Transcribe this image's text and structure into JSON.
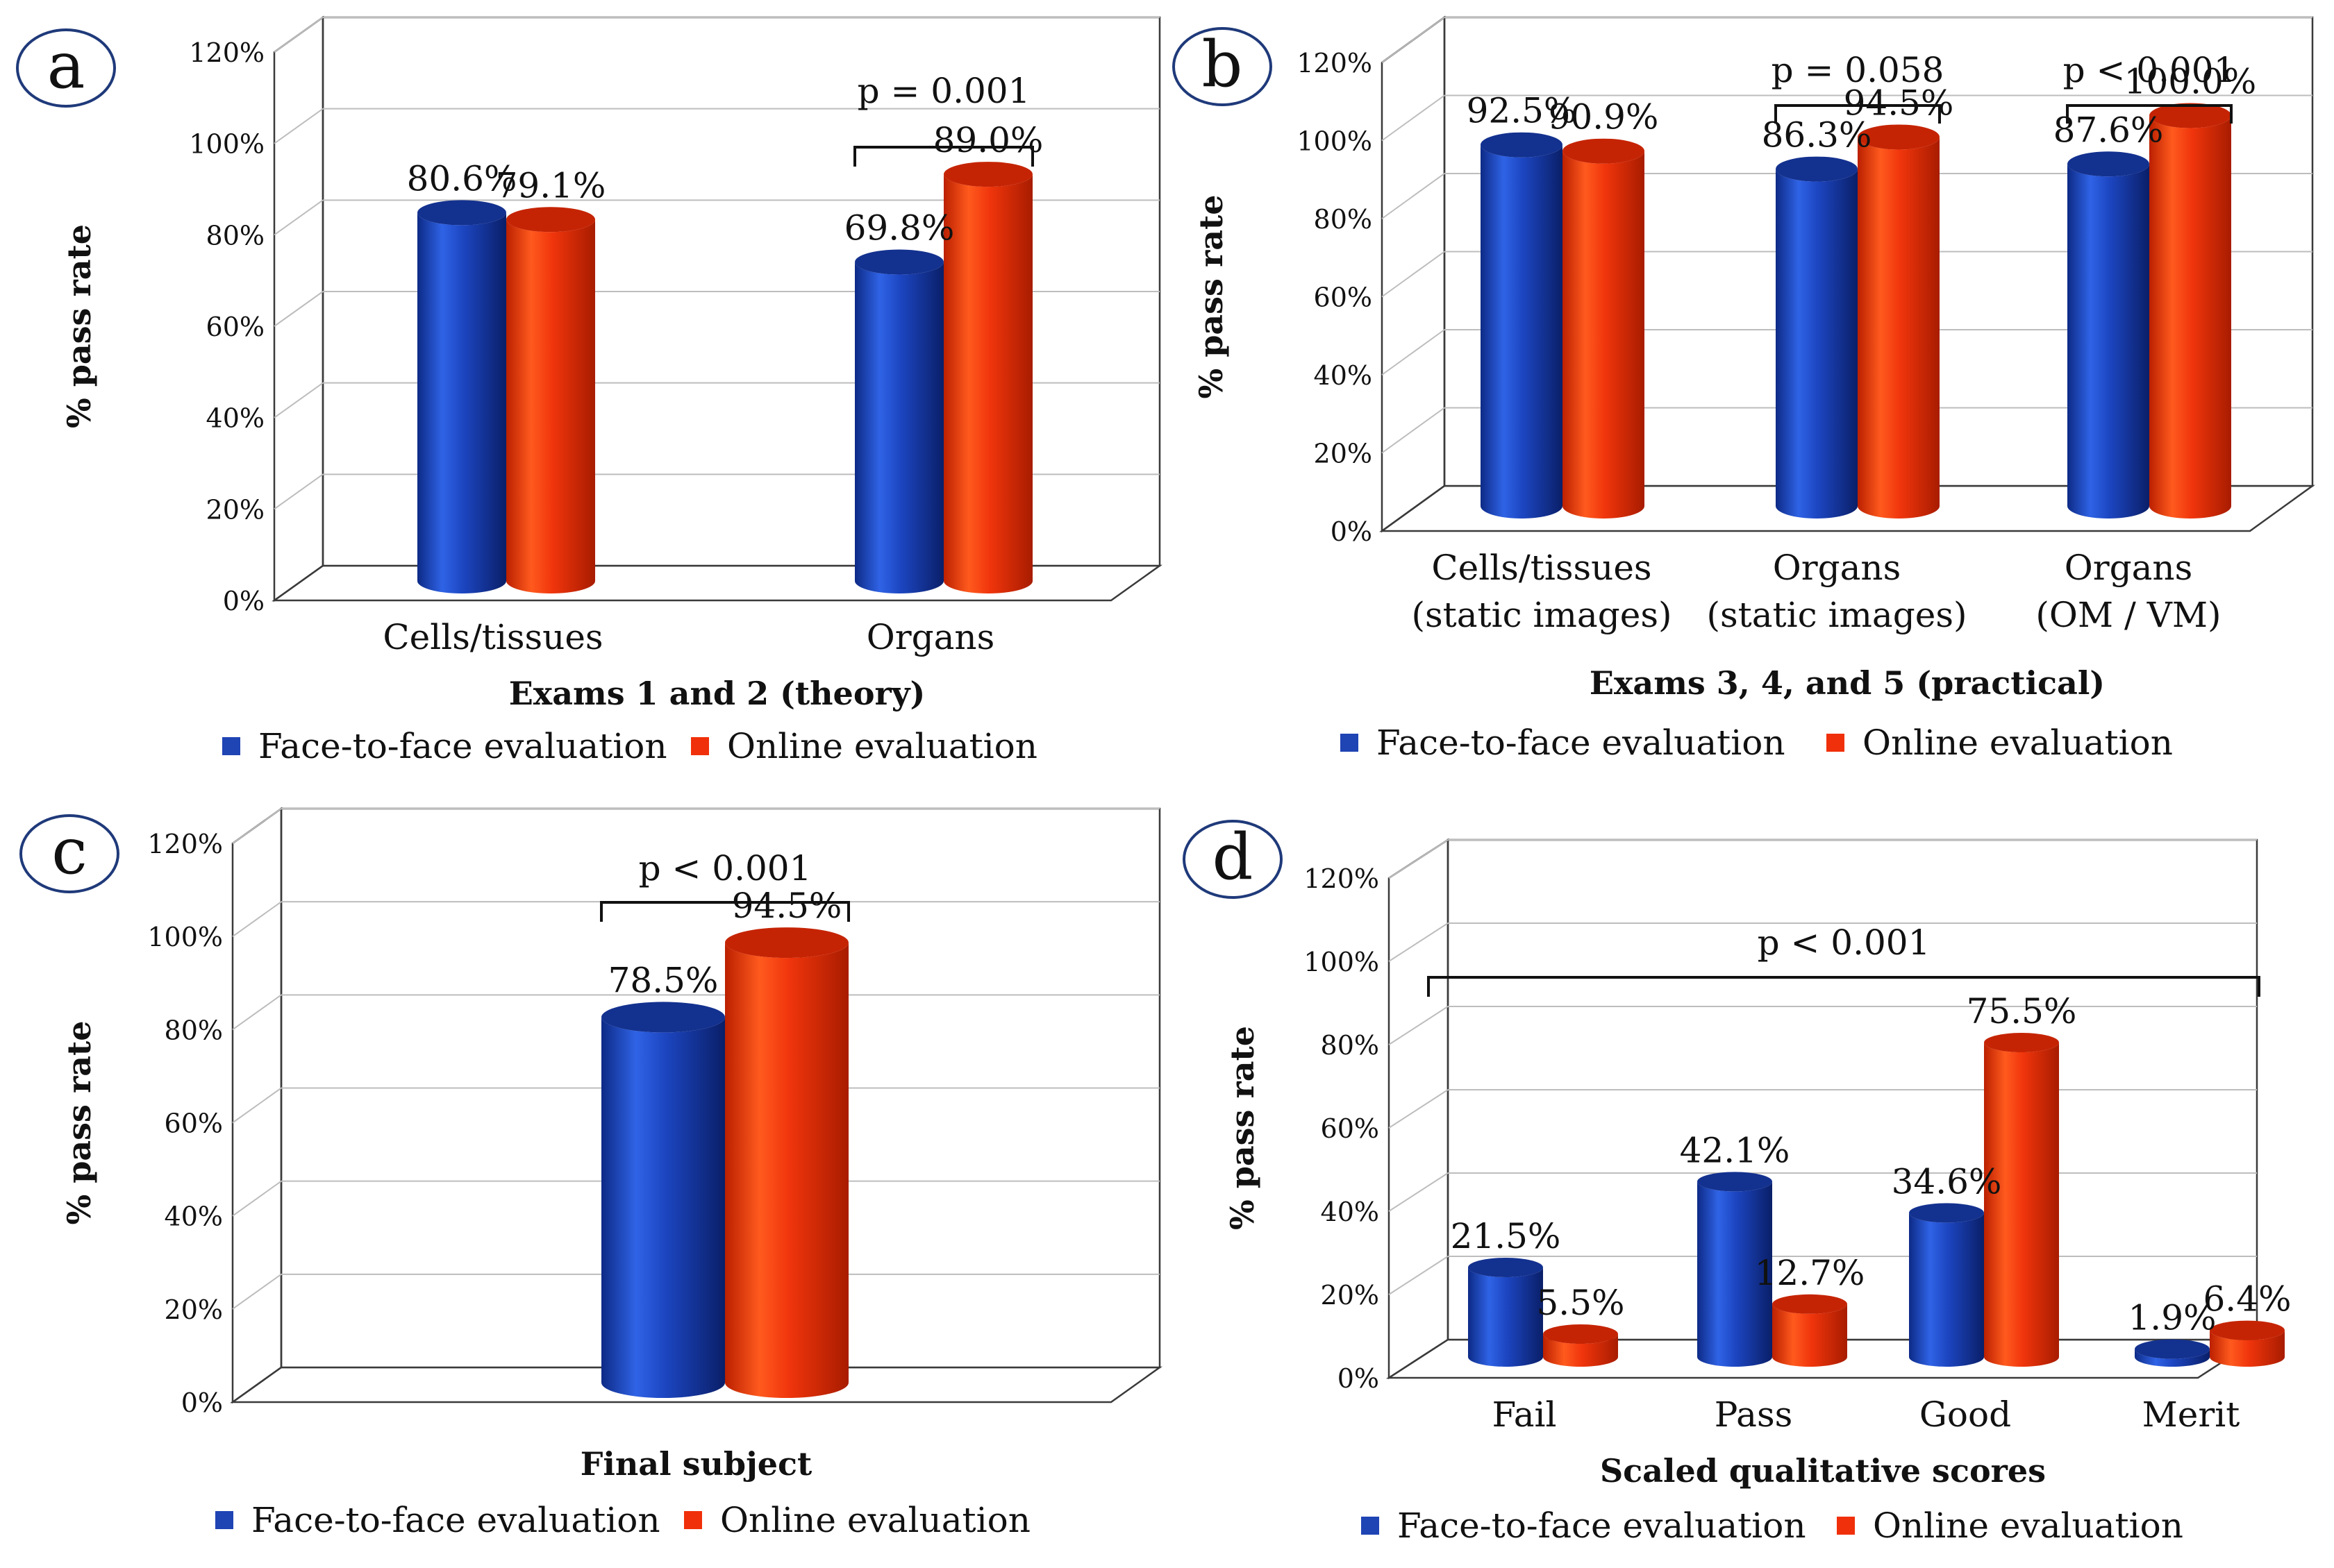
{
  "legend": {
    "face_to_face": "Face-to-face evaluation",
    "online": "Online evaluation"
  },
  "colors": {
    "face_to_face": "#1f44b4",
    "online": "#f0300a"
  },
  "chart_data": [
    {
      "panel": "a",
      "type": "bar",
      "xlabel": "Exams 1 and 2 (theory)",
      "ylabel": "% pass rate",
      "ylim": [
        0,
        120
      ],
      "yticks": [
        "0%",
        "20%",
        "40%",
        "60%",
        "80%",
        "100%",
        "120%"
      ],
      "categories": [
        [
          "Cells/tissues"
        ],
        [
          "Organs"
        ]
      ],
      "series": [
        {
          "name": "Face-to-face evaluation",
          "values": [
            80.6,
            69.8
          ],
          "labels": [
            "80.6%",
            "69.8%"
          ]
        },
        {
          "name": "Online evaluation",
          "values": [
            79.1,
            89.0
          ],
          "labels": [
            "79.1%",
            "89.0%"
          ]
        }
      ],
      "annotations": [
        {
          "text": "p = 0.001",
          "from_category": 1,
          "to_category": 1
        }
      ]
    },
    {
      "panel": "b",
      "type": "bar",
      "xlabel": "Exams 3, 4, and 5 (practical)",
      "ylabel": "% pass rate",
      "ylim": [
        0,
        120
      ],
      "yticks": [
        "0%",
        "20%",
        "40%",
        "60%",
        "80%",
        "100%",
        "120%"
      ],
      "categories": [
        [
          "Cells/tissues",
          "(static images)"
        ],
        [
          "Organs",
          "(static images)"
        ],
        [
          "Organs",
          "(OM / VM)"
        ]
      ],
      "series": [
        {
          "name": "Face-to-face evaluation",
          "values": [
            92.5,
            86.3,
            87.6
          ],
          "labels": [
            "92.5%",
            "86.3%",
            "87.6%"
          ]
        },
        {
          "name": "Online evaluation",
          "values": [
            90.9,
            94.5,
            100.0
          ],
          "labels": [
            "90.9%",
            "94.5%",
            "100.0%"
          ]
        }
      ],
      "annotations": [
        {
          "text": "p = 0.058",
          "from_category": 1,
          "to_category": 1
        },
        {
          "text": "p < 0.001",
          "from_category": 2,
          "to_category": 2
        }
      ]
    },
    {
      "panel": "c",
      "type": "bar",
      "xlabel": "Final subject",
      "ylabel": "% pass rate",
      "ylim": [
        0,
        120
      ],
      "yticks": [
        "0%",
        "20%",
        "40%",
        "60%",
        "80%",
        "100%",
        "120%"
      ],
      "categories": [
        [
          ""
        ]
      ],
      "series": [
        {
          "name": "Face-to-face evaluation",
          "values": [
            78.5
          ],
          "labels": [
            "78.5%"
          ]
        },
        {
          "name": "Online evaluation",
          "values": [
            94.5
          ],
          "labels": [
            "94.5%"
          ]
        }
      ],
      "annotations": [
        {
          "text": "p < 0.001",
          "from_category": 0,
          "to_category": 0
        }
      ]
    },
    {
      "panel": "d",
      "type": "bar",
      "xlabel": "Scaled qualitative scores",
      "ylabel": "% pass rate",
      "ylim": [
        0,
        120
      ],
      "yticks": [
        "0%",
        "20%",
        "40%",
        "60%",
        "80%",
        "100%",
        "120%"
      ],
      "categories": [
        [
          "Fail"
        ],
        [
          "Pass"
        ],
        [
          "Good"
        ],
        [
          "Merit"
        ]
      ],
      "series": [
        {
          "name": "Face-to-face evaluation",
          "values": [
            21.5,
            42.1,
            34.6,
            1.9
          ],
          "labels": [
            "21.5%",
            "42.1%",
            "34.6%",
            "1.9%"
          ]
        },
        {
          "name": "Online evaluation",
          "values": [
            5.5,
            12.7,
            75.5,
            6.4
          ],
          "labels": [
            "5.5%",
            "12.7%",
            "75.5%",
            "6.4%"
          ]
        }
      ],
      "annotations": [
        {
          "text": "p < 0.001",
          "from_category": 0,
          "to_category": 3
        }
      ]
    }
  ]
}
